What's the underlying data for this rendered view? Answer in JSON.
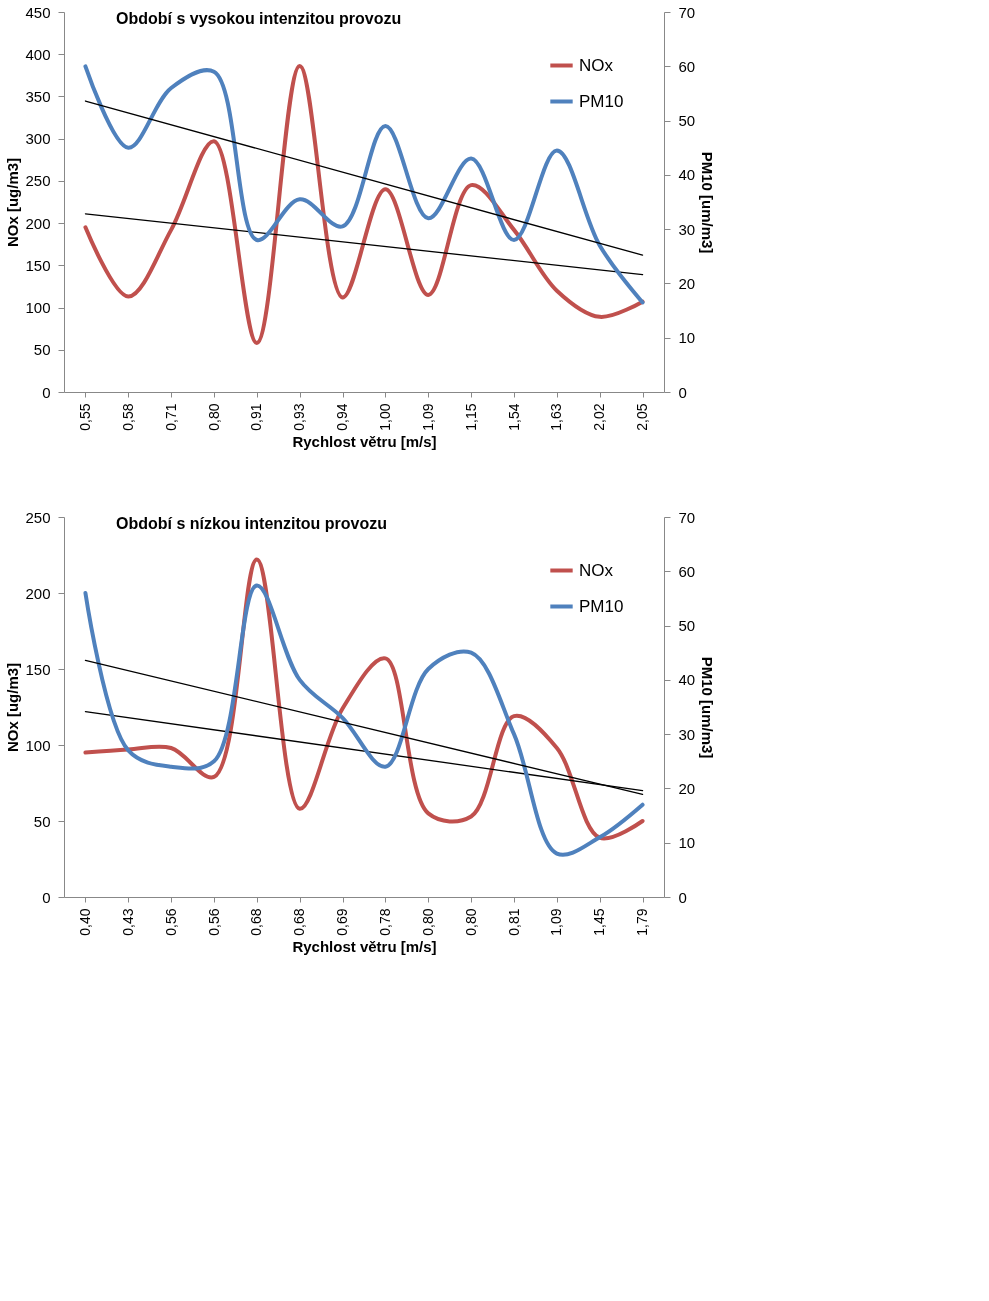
{
  "chart_data": [
    {
      "type": "line",
      "title": "Období s vysokou intenzitou provozu",
      "xlabel": "Rychlost větru [m/s]",
      "ylabel": "NOx [ug/m3]",
      "y2label": "PM10 [um/m3]",
      "categories": [
        "0,55",
        "0,58",
        "0,71",
        "0,80",
        "0,91",
        "0,93",
        "0,94",
        "1,00",
        "1,09",
        "1,15",
        "1,54",
        "1,63",
        "2,02",
        "2,05"
      ],
      "series": [
        {
          "name": "NOx",
          "color": "#c0504d",
          "values": [
            195,
            113,
            192,
            297,
            58,
            386,
            112,
            240,
            115,
            245,
            192,
            120,
            89,
            107
          ]
        },
        {
          "name": "PM10",
          "color": "#4f81bd",
          "axis": "y2",
          "values": [
            60,
            45,
            56,
            59,
            28,
            35.5,
            30.5,
            49,
            32,
            43,
            28,
            44.5,
            27,
            16.5
          ]
        },
        {
          "type": "line",
          "color": "#000000",
          "x": [
            "0,55",
            "2,05"
          ],
          "values": [
            211,
            139
          ]
        },
        {
          "type": "line",
          "color": "#000000",
          "axis": "y2",
          "x": [
            "0,55",
            "2,05"
          ],
          "values": [
            53.6,
            25.2
          ]
        }
      ],
      "ylim": [
        0,
        450
      ],
      "yticks": [
        0,
        50,
        100,
        150,
        200,
        250,
        300,
        350,
        400,
        450
      ],
      "y2lim": [
        0,
        70
      ],
      "y2ticks": [
        0,
        10,
        20,
        30,
        40,
        50,
        60,
        70
      ],
      "legend": "top right",
      "grid": false
    },
    {
      "type": "line",
      "title": "Období s nízkou intenzitou provozu",
      "xlabel": "Rychlost větru [m/s]",
      "ylabel": "NOx [ug/m3]",
      "y2label": "PM10 [um/m3]",
      "categories": [
        "0,40",
        "0,43",
        "0,56",
        "0,56",
        "0,68",
        "0,68",
        "0,69",
        "0,78",
        "0,80",
        "0,80",
        "0,81",
        "1,09",
        "1,45",
        "1,79"
      ],
      "series": [
        {
          "name": "NOx",
          "color": "#c0504d",
          "values": [
            95,
            97,
            98,
            79,
            222,
            58,
            124,
            157,
            55,
            53,
            119,
            98,
            39,
            50
          ]
        },
        {
          "name": "PM10",
          "color": "#4f81bd",
          "axis": "y2",
          "values": [
            56,
            27,
            24,
            25,
            57.4,
            40,
            33,
            24,
            42,
            45,
            30,
            8,
            11,
            17
          ]
        },
        {
          "type": "line",
          "color": "#000000",
          "x": [
            "0,40",
            "1,79"
          ],
          "values": [
            122,
            70
          ]
        },
        {
          "type": "line",
          "color": "#000000",
          "axis": "y2",
          "x": [
            "0,40",
            "1,79"
          ],
          "values": [
            43.6,
            18.9
          ]
        }
      ],
      "ylim": [
        0,
        250
      ],
      "yticks": [
        0,
        50,
        100,
        150,
        200,
        250
      ],
      "y2lim": [
        0,
        70
      ],
      "y2ticks": [
        0,
        10,
        20,
        30,
        40,
        50,
        60,
        70
      ],
      "legend": "top right",
      "grid": false
    }
  ]
}
